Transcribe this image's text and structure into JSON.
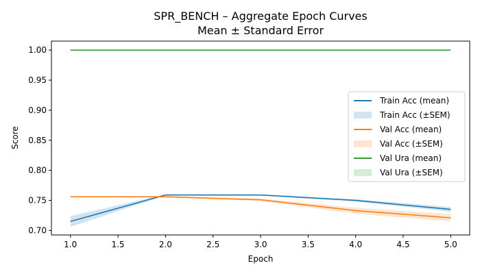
{
  "chart_data": {
    "type": "line",
    "title": "SPR_BENCH – Aggregate Epoch Curves",
    "subtitle": "Mean ± Standard Error",
    "xlabel": "Epoch",
    "ylabel": "Score",
    "xlim": [
      0.8,
      5.2
    ],
    "ylim": [
      0.6925,
      1.015
    ],
    "xticks": [
      "1.0",
      "1.5",
      "2.0",
      "2.5",
      "3.0",
      "3.5",
      "4.0",
      "4.5",
      "5.0"
    ],
    "yticks": [
      "0.70",
      "0.75",
      "0.80",
      "0.85",
      "0.90",
      "0.95",
      "1.00"
    ],
    "x": [
      1,
      2,
      3,
      4,
      5
    ],
    "grid": false,
    "legend_position": "center-right",
    "series": [
      {
        "name": "Train Acc (mean)",
        "band_name": "Train Acc (±SEM)",
        "color": "#1f77b4",
        "values": [
          0.715,
          0.759,
          0.759,
          0.75,
          0.735
        ],
        "sem": [
          0.009,
          0.001,
          0.001,
          0.002,
          0.004
        ]
      },
      {
        "name": "Val Acc (mean)",
        "band_name": "Val Acc (±SEM)",
        "color": "#ff7f0e",
        "values": [
          0.756,
          0.756,
          0.751,
          0.733,
          0.721
        ],
        "sem": [
          0.001,
          0.001,
          0.002,
          0.005,
          0.006
        ]
      },
      {
        "name": "Val Ura (mean)",
        "band_name": "Val Ura (±SEM)",
        "color": "#2ca02c",
        "values": [
          1.0,
          1.0,
          1.0,
          1.0,
          1.0
        ],
        "sem": [
          0.0,
          0.0,
          0.0,
          0.0,
          0.0
        ]
      }
    ]
  }
}
